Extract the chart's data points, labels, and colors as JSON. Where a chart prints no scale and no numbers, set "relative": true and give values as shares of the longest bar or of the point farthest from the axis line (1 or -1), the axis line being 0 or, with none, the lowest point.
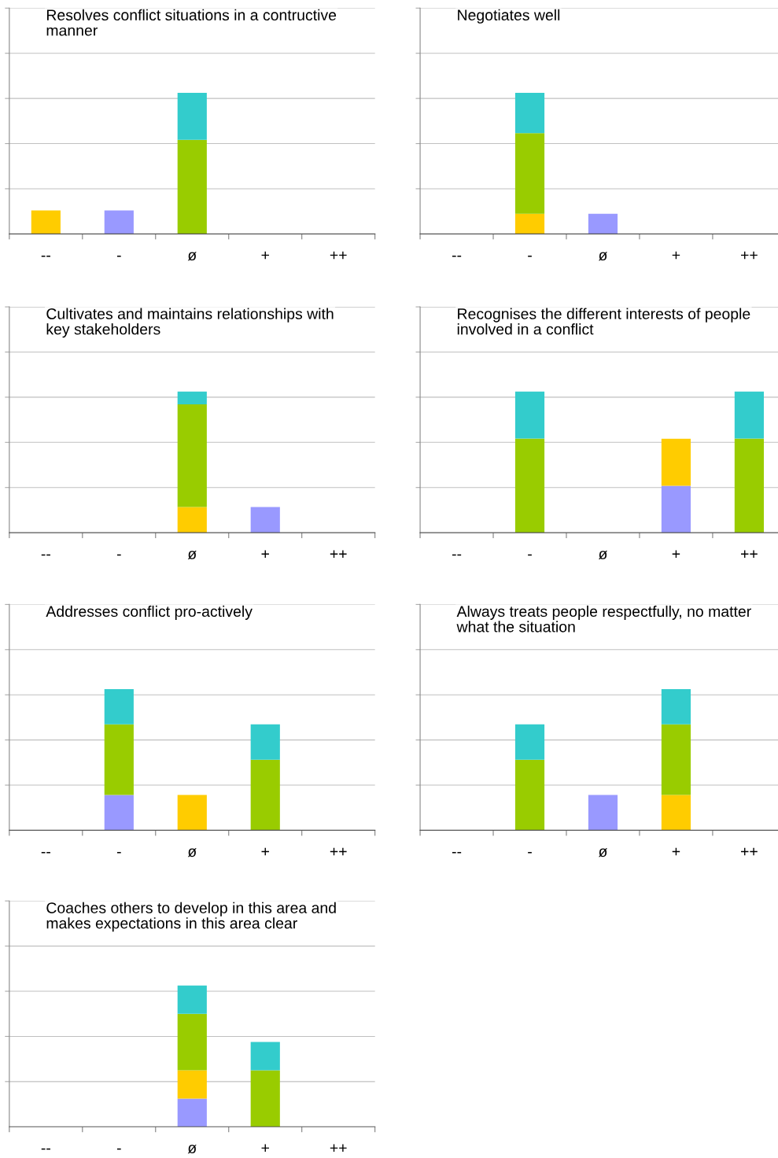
{
  "chart_data": [
    {
      "type": "bar",
      "title": "Resolves conflict situations in a contructive manner",
      "categories": [
        "--",
        "-",
        "ø",
        "+",
        "++"
      ],
      "stacked": true,
      "relative": true,
      "grid": "y",
      "series": [
        {
          "color": "#9999ff",
          "values": [
            null,
            0.167,
            null,
            null,
            null
          ]
        },
        {
          "color": "#ffcc00",
          "values": [
            0.167,
            null,
            null,
            null,
            null
          ]
        },
        {
          "color": "#99cc00",
          "values": [
            null,
            null,
            0.667,
            null,
            null
          ]
        },
        {
          "color": "#33cccc",
          "values": [
            null,
            null,
            0.333,
            null,
            null
          ]
        }
      ]
    },
    {
      "type": "bar",
      "title": "Negotiates well",
      "categories": [
        "--",
        "-",
        "ø",
        "+",
        "++"
      ],
      "stacked": true,
      "relative": true,
      "grid": "y",
      "series": [
        {
          "color": "#9999ff",
          "values": [
            null,
            null,
            0.143,
            null,
            null
          ]
        },
        {
          "color": "#ffcc00",
          "values": [
            null,
            0.143,
            null,
            null,
            null
          ]
        },
        {
          "color": "#99cc00",
          "values": [
            null,
            0.571,
            null,
            null,
            null
          ]
        },
        {
          "color": "#33cccc",
          "values": [
            null,
            0.286,
            null,
            null,
            null
          ]
        }
      ]
    },
    {
      "type": "bar",
      "title": "Cultivates and maintains relationships with key stakeholders",
      "categories": [
        "--",
        "-",
        "ø",
        "+",
        "++"
      ],
      "stacked": true,
      "relative": true,
      "grid": "y",
      "series": [
        {
          "color": "#9999ff",
          "values": [
            null,
            null,
            null,
            0.182,
            null
          ]
        },
        {
          "color": "#ffcc00",
          "values": [
            null,
            null,
            0.182,
            null,
            null
          ]
        },
        {
          "color": "#99cc00",
          "values": [
            null,
            null,
            0.727,
            null,
            null
          ]
        },
        {
          "color": "#33cccc",
          "values": [
            null,
            null,
            0.091,
            null,
            null
          ]
        }
      ]
    },
    {
      "type": "bar",
      "title": "Recognises the different interests of people involved in a conflict",
      "categories": [
        "--",
        "-",
        "ø",
        "+",
        "++"
      ],
      "stacked": true,
      "relative": true,
      "grid": "y",
      "series": [
        {
          "color": "#9999ff",
          "values": [
            null,
            null,
            null,
            0.333,
            null
          ]
        },
        {
          "color": "#ffcc00",
          "values": [
            null,
            null,
            null,
            0.333,
            null
          ]
        },
        {
          "color": "#99cc00",
          "values": [
            null,
            0.667,
            null,
            null,
            0.667
          ]
        },
        {
          "color": "#33cccc",
          "values": [
            null,
            0.333,
            null,
            null,
            0.333
          ]
        }
      ]
    },
    {
      "type": "bar",
      "title": "Addresses conflict pro-actively",
      "categories": [
        "--",
        "-",
        "ø",
        "+",
        "++"
      ],
      "stacked": true,
      "relative": true,
      "grid": "y",
      "series": [
        {
          "color": "#9999ff",
          "values": [
            null,
            0.25,
            null,
            null,
            null
          ]
        },
        {
          "color": "#ffcc00",
          "values": [
            null,
            null,
            0.25,
            null,
            null
          ]
        },
        {
          "color": "#99cc00",
          "values": [
            null,
            0.5,
            null,
            0.5,
            null
          ]
        },
        {
          "color": "#33cccc",
          "values": [
            null,
            0.25,
            null,
            0.25,
            null
          ]
        }
      ]
    },
    {
      "type": "bar",
      "title": "Always treats people respectfully, no matter what the situation",
      "categories": [
        "--",
        "-",
        "ø",
        "+",
        "++"
      ],
      "stacked": true,
      "relative": true,
      "grid": "y",
      "series": [
        {
          "color": "#9999ff",
          "values": [
            null,
            null,
            0.25,
            null,
            null
          ]
        },
        {
          "color": "#ffcc00",
          "values": [
            null,
            null,
            null,
            0.25,
            null
          ]
        },
        {
          "color": "#99cc00",
          "values": [
            null,
            0.5,
            null,
            0.5,
            null
          ]
        },
        {
          "color": "#33cccc",
          "values": [
            null,
            0.25,
            null,
            0.25,
            null
          ]
        }
      ]
    },
    {
      "type": "bar",
      "title": "Coaches others to develop in this area and makes expectations in this area clear",
      "categories": [
        "--",
        "-",
        "ø",
        "+",
        "++"
      ],
      "stacked": true,
      "relative": true,
      "grid": "y",
      "series": [
        {
          "color": "#9999ff",
          "values": [
            null,
            null,
            0.2,
            null,
            null
          ]
        },
        {
          "color": "#ffcc00",
          "values": [
            null,
            null,
            0.2,
            null,
            null
          ]
        },
        {
          "color": "#99cc00",
          "values": [
            null,
            null,
            0.4,
            0.4,
            null
          ]
        },
        {
          "color": "#33cccc",
          "values": [
            null,
            null,
            0.2,
            0.2,
            null
          ]
        }
      ]
    }
  ]
}
